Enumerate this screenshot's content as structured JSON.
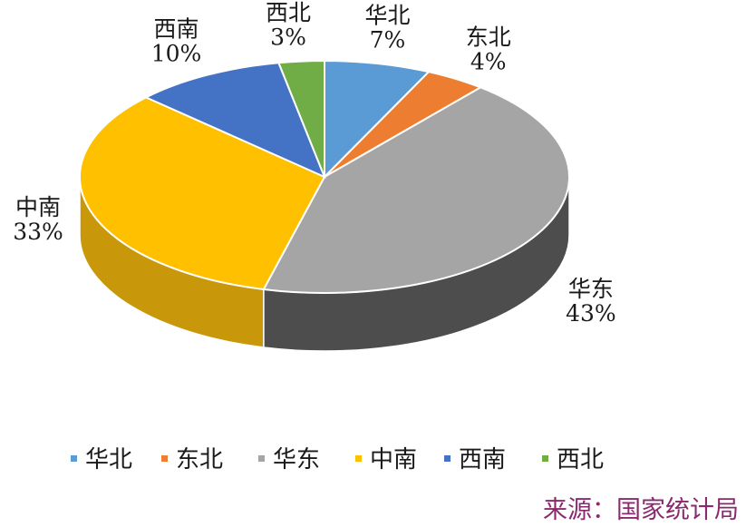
{
  "chart_data": {
    "type": "pie",
    "title": "",
    "categories": [
      "华北",
      "东北",
      "华东",
      "中南",
      "西南",
      "西北"
    ],
    "values": [
      7,
      4,
      43,
      33,
      10,
      3
    ],
    "value_labels": [
      "7%",
      "4%",
      "43%",
      "33%",
      "10%",
      "3%"
    ],
    "colors": [
      "#5b9bd5",
      "#ed7d31",
      "#a5a5a5",
      "#ffc000",
      "#4472c4",
      "#70ad47"
    ],
    "side_colors": [
      "#3f6f9a",
      "#a85420",
      "#4d4d4d",
      "#c9980a",
      "#2e4f8c",
      "#4a7a2e"
    ],
    "style": "3d",
    "legend_position": "bottom"
  },
  "source": "来源：国家统计局"
}
